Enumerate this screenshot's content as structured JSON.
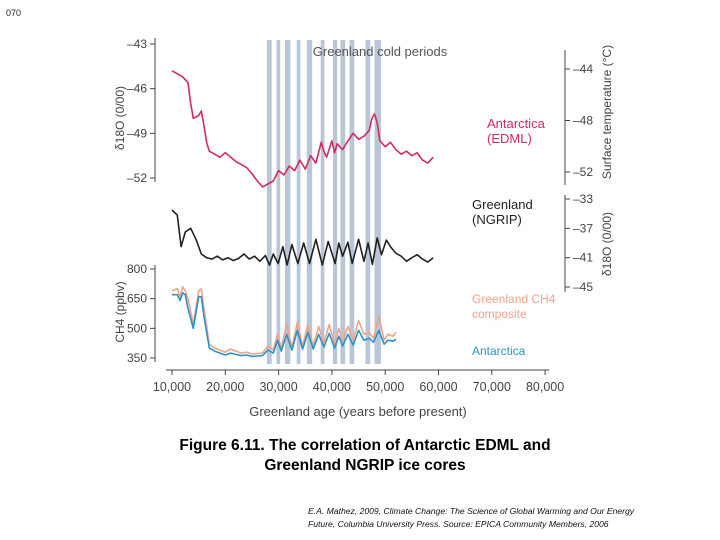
{
  "slide_number": "070",
  "caption": {
    "line1": "Figure 6.11.  The correlation of Antarctic EDML and",
    "line2": "Greenland NGRIP ice cores"
  },
  "source": {
    "line1": "E.A. Mathez, 2009, Climate Change: The Science of Global Warming and Our Energy",
    "line2": "Future, Columbia University Press. Source: EPICA Community Members, 2006"
  },
  "chart_data": {
    "type": "line",
    "title": "Greenland cold periods",
    "xlabel": "Greenland age (years before present)",
    "xlim": [
      10000,
      80000
    ],
    "x_ticks": [
      "10,000",
      "20,000",
      "30,000",
      "40,000",
      "50,000",
      "60,000",
      "70,000",
      "80,000"
    ],
    "x_tick_values": [
      10000,
      20000,
      30000,
      40000,
      50000,
      60000,
      70000,
      80000
    ],
    "colors": {
      "edml": "#d42a5e",
      "ngrip": "#222222",
      "ch4_composite": "#f0a38a",
      "ch4_antarctica": "#2a93c8",
      "cold_periods": "#b8c6d6",
      "axis": "#444444"
    },
    "cold_periods": [
      [
        27800,
        28700
      ],
      [
        29600,
        30300
      ],
      [
        31200,
        32200
      ],
      [
        33400,
        34100
      ],
      [
        35300,
        36300
      ],
      [
        37900,
        38600
      ],
      [
        40200,
        41000
      ],
      [
        41600,
        42500
      ],
      [
        43300,
        44200
      ],
      [
        46300,
        47200
      ],
      [
        48000,
        49200
      ]
    ],
    "panels": {
      "edml": {
        "ylabel": "δ18O (0/00)",
        "y_ticks": [
          "–43",
          "–46",
          "–49",
          "–52"
        ],
        "y_tick_values": [
          -43,
          -46,
          -49,
          -52
        ],
        "ylim": [
          -53,
          -43
        ],
        "right_label": "Surface temperature (°C)",
        "right_ticks": [
          "–44",
          "–48",
          "–52"
        ],
        "right_tick_values": [
          -44,
          -48,
          -52
        ],
        "series_label_1": "Antarctica",
        "series_label_2": "(EDML)"
      },
      "ngrip": {
        "ylabel": "δ18O (0/00)",
        "y_ticks": [
          "–33",
          "–37",
          "–41",
          "–45"
        ],
        "y_tick_values": [
          -33,
          -37,
          -41,
          -45
        ],
        "ylim": [
          -45,
          -33
        ],
        "series_label_1": "Greenland",
        "series_label_2": "(NGRIP)"
      },
      "ch4": {
        "ylabel": "CH4 (ppbv)",
        "y_ticks": [
          "800",
          "650",
          "500",
          "350"
        ],
        "y_tick_values": [
          800,
          650,
          500,
          350
        ],
        "ylim": [
          300,
          800
        ],
        "composite_label_1": "Greenland CH4",
        "composite_label_2": "composite",
        "antarctica_label": "Antarctica"
      }
    },
    "series": [
      {
        "name": "Antarctica (EDML) δ18O",
        "panel": "edml",
        "x": [
          10000,
          11000,
          12000,
          13000,
          13500,
          14000,
          15000,
          15500,
          16000,
          16500,
          17000,
          18000,
          19000,
          20000,
          21000,
          22000,
          23000,
          24000,
          25000,
          26000,
          27000,
          28000,
          29000,
          30000,
          31000,
          32000,
          33000,
          34000,
          35000,
          36000,
          37000,
          38000,
          38500,
          39000,
          40000,
          40500,
          41000,
          42000,
          43000,
          44000,
          45000,
          46000,
          47000,
          47500,
          48000,
          48500,
          49000,
          50000,
          51000,
          52000,
          53000,
          54000,
          55000,
          56000,
          57000,
          58000,
          59000
        ],
        "y": [
          -44.8,
          -45.0,
          -45.2,
          -45.6,
          -47.0,
          -48.0,
          -47.8,
          -47.5,
          -48.5,
          -49.6,
          -50.2,
          -50.4,
          -50.6,
          -50.3,
          -50.6,
          -50.9,
          -51.1,
          -51.3,
          -51.7,
          -52.2,
          -52.6,
          -52.4,
          -52.2,
          -51.5,
          -51.8,
          -51.2,
          -51.5,
          -50.8,
          -51.4,
          -50.5,
          -51.0,
          -49.6,
          -50.2,
          -50.6,
          -49.5,
          -50.3,
          -49.7,
          -50.1,
          -49.5,
          -49.0,
          -49.4,
          -49.2,
          -48.8,
          -48.0,
          -47.7,
          -48.3,
          -49.5,
          -49.9,
          -49.6,
          -50.1,
          -50.4,
          -50.2,
          -50.5,
          -50.3,
          -50.8,
          -51.0,
          -50.6
        ]
      },
      {
        "name": "Greenland (NGRIP) δ18O",
        "panel": "ngrip",
        "x": [
          10000,
          11000,
          11700,
          12500,
          13500,
          14500,
          15500,
          16500,
          17500,
          18500,
          19500,
          20500,
          21500,
          22500,
          23500,
          24500,
          25500,
          26500,
          27500,
          28300,
          29000,
          29900,
          30800,
          31600,
          32500,
          33600,
          34700,
          35800,
          37000,
          38200,
          39300,
          40600,
          41300,
          42000,
          43000,
          43800,
          45000,
          46000,
          46800,
          47600,
          48500,
          49300,
          50200,
          51000,
          52000,
          53000,
          54000,
          55000,
          56000,
          57000,
          58000,
          59000
        ],
        "y": [
          -34.5,
          -35.2,
          -39.5,
          -37.5,
          -37.0,
          -38.5,
          -40.5,
          -41.0,
          -41.2,
          -40.8,
          -41.3,
          -41.0,
          -41.4,
          -41.1,
          -40.5,
          -41.2,
          -40.8,
          -41.5,
          -40.7,
          -42.0,
          -40.5,
          -41.8,
          -39.5,
          -42.0,
          -39.2,
          -41.8,
          -39.0,
          -41.8,
          -38.5,
          -42.0,
          -38.8,
          -41.8,
          -39.0,
          -40.8,
          -38.9,
          -41.8,
          -38.5,
          -41.5,
          -39.0,
          -41.9,
          -38.3,
          -40.6,
          -38.6,
          -39.5,
          -40.4,
          -40.8,
          -41.5,
          -41.0,
          -40.6,
          -41.2,
          -41.6,
          -41.0
        ]
      },
      {
        "name": "Greenland CH4 composite",
        "panel": "ch4",
        "x": [
          10000,
          11000,
          11500,
          12000,
          12500,
          13000,
          14000,
          15000,
          15500,
          16000,
          17000,
          18000,
          20000,
          21000,
          22000,
          23000,
          24000,
          25000,
          26000,
          27000,
          28000,
          29000,
          29800,
          30500,
          31500,
          32500,
          33500,
          34500,
          35500,
          36500,
          37500,
          38500,
          39500,
          40500,
          41300,
          42000,
          43000,
          44000,
          45000,
          46000,
          47000,
          47800,
          48800,
          49800,
          50500,
          51500,
          52000
        ],
        "y": [
          690,
          700,
          660,
          710,
          690,
          650,
          520,
          690,
          700,
          600,
          420,
          400,
          380,
          395,
          385,
          375,
          380,
          370,
          372,
          375,
          410,
          390,
          470,
          400,
          520,
          400,
          530,
          410,
          520,
          410,
          510,
          425,
          520,
          420,
          500,
          430,
          510,
          440,
          540,
          470,
          480,
          450,
          560,
          440,
          470,
          460,
          480
        ]
      },
      {
        "name": "Antarctica CH4",
        "panel": "ch4",
        "x": [
          10000,
          11000,
          11500,
          12000,
          12500,
          13000,
          14000,
          15000,
          15500,
          16000,
          17000,
          18000,
          20000,
          21000,
          22000,
          23000,
          24000,
          25000,
          26000,
          27000,
          28000,
          29000,
          29800,
          30500,
          31500,
          32500,
          33500,
          34500,
          35500,
          36500,
          37500,
          38500,
          39500,
          40500,
          41300,
          42000,
          43000,
          44000,
          45000,
          46000,
          47000,
          47800,
          48800,
          49800,
          50500,
          51500,
          52000
        ],
        "y": [
          670,
          670,
          640,
          680,
          670,
          600,
          500,
          660,
          660,
          560,
          400,
          385,
          365,
          375,
          368,
          362,
          365,
          358,
          360,
          362,
          390,
          375,
          440,
          385,
          470,
          390,
          490,
          395,
          480,
          395,
          470,
          405,
          475,
          400,
          460,
          410,
          470,
          415,
          490,
          440,
          450,
          430,
          490,
          420,
          440,
          435,
          445
        ]
      }
    ]
  }
}
